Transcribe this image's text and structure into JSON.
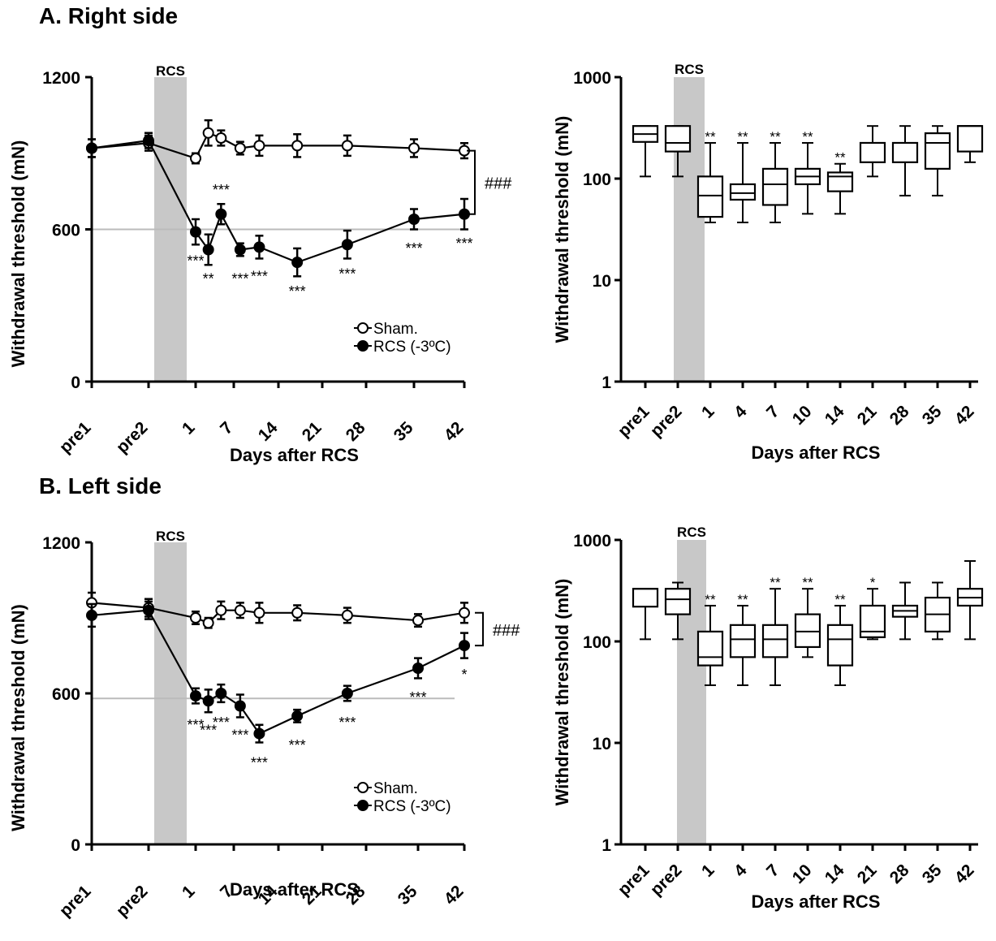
{
  "sections": [
    {
      "title": "A. Right side"
    },
    {
      "title": "B. Left side"
    }
  ],
  "chart_data": [
    {
      "type": "line",
      "panel": "A-left",
      "xlabel": "Days after RCS",
      "ylabel": "Withdrawal threshold (mN)",
      "categories": [
        "pre1",
        "pre2",
        "1",
        "7",
        "14",
        "21",
        "28",
        "35",
        "42"
      ],
      "x_axis_tick_positions_days": [
        -6,
        -2,
        1,
        7,
        14,
        21,
        28,
        35,
        42
      ],
      "ylim": [
        0,
        1200
      ],
      "yticks": [
        0,
        600,
        1200
      ],
      "ytick_labels": [
        "0",
        "600",
        "1200"
      ],
      "shaded_band": {
        "label": "RCS",
        "x_from": -2,
        "x_to": 0.5,
        "color": "#c8c8c8"
      },
      "reference_line": {
        "y": 600,
        "color": "#bbbbbb"
      },
      "bracket_label": "###",
      "legend": {
        "position": "bottom-right",
        "entries": [
          "Sham.",
          "RCS (-3ºC)"
        ]
      },
      "series": [
        {
          "name": "Sham.",
          "marker": "open-circle",
          "x": [
            -6,
            -2,
            1,
            3,
            5,
            8,
            11,
            17,
            25,
            35,
            42
          ],
          "y": [
            920,
            940,
            880,
            980,
            960,
            920,
            930,
            930,
            930,
            920,
            910
          ],
          "err": [
            35,
            30,
            20,
            50,
            30,
            25,
            40,
            45,
            40,
            35,
            30
          ]
        },
        {
          "name": "RCS (-3ºC)",
          "marker": "filled-circle",
          "x": [
            -6,
            -2,
            1,
            3,
            5,
            8,
            11,
            17,
            25,
            35,
            42
          ],
          "y": [
            920,
            950,
            590,
            520,
            660,
            520,
            530,
            470,
            540,
            640,
            660
          ],
          "err": [
            35,
            30,
            50,
            60,
            40,
            25,
            45,
            55,
            55,
            40,
            60
          ]
        }
      ],
      "annotations": [
        {
          "x": 1,
          "y": 590,
          "text": "***",
          "pos": "below"
        },
        {
          "x": 3,
          "y": 520,
          "text": "**",
          "pos": "below"
        },
        {
          "x": 5,
          "y": 660,
          "text": "***",
          "pos": "above"
        },
        {
          "x": 8,
          "y": 520,
          "text": "***",
          "pos": "below"
        },
        {
          "x": 11,
          "y": 530,
          "text": "***",
          "pos": "below"
        },
        {
          "x": 17,
          "y": 470,
          "text": "***",
          "pos": "below"
        },
        {
          "x": 25,
          "y": 540,
          "text": "***",
          "pos": "below"
        },
        {
          "x": 35,
          "y": 640,
          "text": "***",
          "pos": "below"
        },
        {
          "x": 42,
          "y": 660,
          "text": "***",
          "pos": "below"
        }
      ]
    },
    {
      "type": "box",
      "panel": "A-right",
      "xlabel": "Days after RCS",
      "ylabel": "Withdrawal threshold (mN)",
      "categories": [
        "pre1",
        "pre2",
        "1",
        "4",
        "7",
        "10",
        "14",
        "21",
        "28",
        "35",
        "42"
      ],
      "yscale": "log",
      "ylim": [
        1,
        1000
      ],
      "yticks": [
        1,
        10,
        100,
        1000
      ],
      "ytick_labels": [
        "1",
        "10",
        "100",
        "1000"
      ],
      "shaded_band": {
        "label": "RCS",
        "from_index": 1.5,
        "to_index": 2.45,
        "color": "#c8c8c8"
      },
      "boxes": [
        {
          "min": 105,
          "q1": 230,
          "median": 275,
          "q3": 330,
          "max": 330
        },
        {
          "min": 105,
          "q1": 185,
          "median": 225,
          "q3": 330,
          "max": 330
        },
        {
          "min": 37,
          "q1": 42,
          "median": 68,
          "q3": 105,
          "max": 225
        },
        {
          "min": 37,
          "q1": 62,
          "median": 72,
          "q3": 88,
          "max": 225
        },
        {
          "min": 37,
          "q1": 55,
          "median": 88,
          "q3": 125,
          "max": 225
        },
        {
          "min": 45,
          "q1": 88,
          "median": 105,
          "q3": 125,
          "max": 225
        },
        {
          "min": 45,
          "q1": 75,
          "median": 105,
          "q3": 115,
          "max": 140
        },
        {
          "min": 105,
          "q1": 145,
          "median": 225,
          "q3": 225,
          "max": 330
        },
        {
          "min": 68,
          "q1": 145,
          "median": 225,
          "q3": 225,
          "max": 330
        },
        {
          "min": 68,
          "q1": 125,
          "median": 225,
          "q3": 280,
          "max": 330
        },
        {
          "min": 145,
          "q1": 185,
          "median": 330,
          "q3": 330,
          "max": 330
        }
      ],
      "annotations": [
        {
          "index": 2,
          "text": "**"
        },
        {
          "index": 3,
          "text": "**"
        },
        {
          "index": 4,
          "text": "**"
        },
        {
          "index": 5,
          "text": "**"
        },
        {
          "index": 6,
          "text": "**"
        }
      ]
    },
    {
      "type": "line",
      "panel": "B-left",
      "xlabel": "Days after RCS",
      "ylabel": "Withdrawal threshold (mN)",
      "categories": [
        "pre1",
        "pre2",
        "1",
        "7",
        "14",
        "21",
        "28",
        "35",
        "42"
      ],
      "x_axis_tick_positions_days": [
        -6,
        -2,
        1,
        7,
        14,
        21,
        28,
        35,
        42
      ],
      "ylim": [
        0,
        1200
      ],
      "yticks": [
        0,
        600,
        1200
      ],
      "ytick_labels": [
        "0",
        "600",
        "1200"
      ],
      "shaded_band": {
        "label": "RCS",
        "x_from": -2,
        "x_to": 0.5,
        "color": "#c8c8c8"
      },
      "reference_line": {
        "y": 580,
        "color": "#bbbbbb"
      },
      "bracket_label": "###",
      "legend": {
        "position": "bottom-right",
        "entries": [
          "Sham.",
          "RCS (-3ºC)"
        ]
      },
      "series": [
        {
          "name": "Sham.",
          "marker": "open-circle",
          "x": [
            -6,
            -2,
            1,
            3,
            5,
            8,
            11,
            17,
            25,
            35,
            42
          ],
          "y": [
            960,
            940,
            900,
            880,
            930,
            930,
            920,
            920,
            910,
            890,
            920
          ],
          "err": [
            40,
            35,
            25,
            20,
            35,
            30,
            40,
            30,
            30,
            25,
            40
          ]
        },
        {
          "name": "RCS (-3ºC)",
          "marker": "filled-circle",
          "x": [
            -6,
            -2,
            1,
            3,
            5,
            8,
            11,
            17,
            25,
            35,
            42
          ],
          "y": [
            910,
            930,
            590,
            570,
            600,
            550,
            440,
            510,
            600,
            700,
            790
          ],
          "err": [
            45,
            35,
            30,
            45,
            35,
            45,
            35,
            25,
            30,
            40,
            50
          ]
        }
      ],
      "annotations": [
        {
          "x": 1,
          "y": 590,
          "text": "***",
          "pos": "below"
        },
        {
          "x": 3,
          "y": 570,
          "text": "***",
          "pos": "below"
        },
        {
          "x": 5,
          "y": 600,
          "text": "***",
          "pos": "below"
        },
        {
          "x": 8,
          "y": 550,
          "text": "***",
          "pos": "below"
        },
        {
          "x": 11,
          "y": 440,
          "text": "***",
          "pos": "below"
        },
        {
          "x": 17,
          "y": 510,
          "text": "***",
          "pos": "below"
        },
        {
          "x": 25,
          "y": 600,
          "text": "***",
          "pos": "below"
        },
        {
          "x": 35,
          "y": 700,
          "text": "***",
          "pos": "below"
        },
        {
          "x": 42,
          "y": 790,
          "text": "*",
          "pos": "below"
        }
      ]
    },
    {
      "type": "box",
      "panel": "B-right",
      "xlabel": "Days after RCS",
      "ylabel": "Withdrawal threshold (mN)",
      "categories": [
        "pre1",
        "pre2",
        "1",
        "4",
        "7",
        "10",
        "14",
        "21",
        "28",
        "35",
        "42"
      ],
      "yscale": "log",
      "ylim": [
        1,
        1000
      ],
      "yticks": [
        1,
        10,
        100,
        1000
      ],
      "ytick_labels": [
        "1",
        "10",
        "100",
        "1000"
      ],
      "shaded_band": {
        "label": "RCS",
        "from_index": 1.5,
        "to_index": 2.4,
        "color": "#c8c8c8"
      },
      "boxes": [
        {
          "min": 105,
          "q1": 220,
          "median": 330,
          "q3": 330,
          "max": 330
        },
        {
          "min": 105,
          "q1": 185,
          "median": 260,
          "q3": 330,
          "max": 380
        },
        {
          "min": 37,
          "q1": 58,
          "median": 70,
          "q3": 125,
          "max": 225
        },
        {
          "min": 37,
          "q1": 70,
          "median": 105,
          "q3": 145,
          "max": 225
        },
        {
          "min": 37,
          "q1": 70,
          "median": 105,
          "q3": 145,
          "max": 330
        },
        {
          "min": 70,
          "q1": 88,
          "median": 125,
          "q3": 185,
          "max": 330
        },
        {
          "min": 37,
          "q1": 58,
          "median": 105,
          "q3": 145,
          "max": 225
        },
        {
          "min": 105,
          "q1": 110,
          "median": 125,
          "q3": 225,
          "max": 330
        },
        {
          "min": 105,
          "q1": 175,
          "median": 200,
          "q3": 225,
          "max": 380
        },
        {
          "min": 105,
          "q1": 125,
          "median": 185,
          "q3": 270,
          "max": 380
        },
        {
          "min": 105,
          "q1": 225,
          "median": 270,
          "q3": 330,
          "max": 620
        }
      ],
      "annotations": [
        {
          "index": 2,
          "text": "**"
        },
        {
          "index": 3,
          "text": "**"
        },
        {
          "index": 4,
          "text": "**"
        },
        {
          "index": 5,
          "text": "**"
        },
        {
          "index": 6,
          "text": "**"
        },
        {
          "index": 7,
          "text": "*"
        }
      ]
    }
  ]
}
